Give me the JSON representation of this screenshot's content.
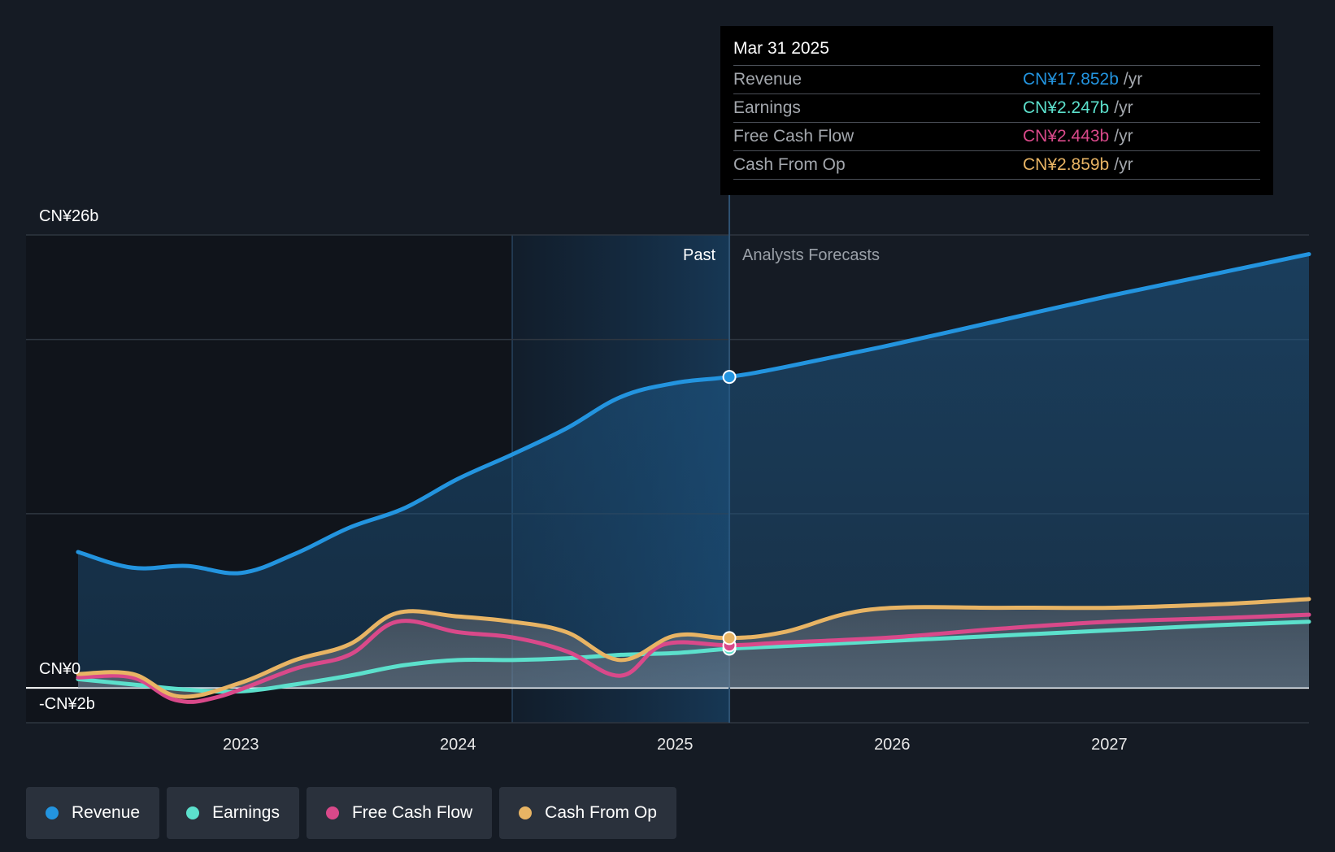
{
  "chart_data": {
    "type": "line",
    "y_unit_labels": {
      "top": "CN¥26b",
      "zero": "CN¥0",
      "bottom": "-CN¥2b"
    },
    "ylim": [
      -2,
      26
    ],
    "xlim": [
      2022.25,
      2027.92
    ],
    "x_ticks": [
      {
        "value": 2023,
        "label": "2023"
      },
      {
        "value": 2024,
        "label": "2024"
      },
      {
        "value": 2025,
        "label": "2025"
      },
      {
        "value": 2026,
        "label": "2026"
      },
      {
        "value": 2027,
        "label": "2027"
      }
    ],
    "gridlines": [
      26,
      20,
      10,
      0,
      -2
    ],
    "past_label": "Past",
    "forecast_label": "Analysts Forecasts",
    "divider_x": 2025.25,
    "highlight_start_x": 2024.25,
    "series": [
      {
        "name": "Revenue",
        "color": "#2394df",
        "points": [
          [
            2022.25,
            7.8
          ],
          [
            2022.5,
            6.9
          ],
          [
            2022.75,
            7.0
          ],
          [
            2023.0,
            6.6
          ],
          [
            2023.25,
            7.7
          ],
          [
            2023.5,
            9.2
          ],
          [
            2023.75,
            10.3
          ],
          [
            2024.0,
            12.0
          ],
          [
            2024.25,
            13.4
          ],
          [
            2024.5,
            14.9
          ],
          [
            2024.75,
            16.7
          ],
          [
            2025.0,
            17.5
          ],
          [
            2025.25,
            17.852
          ],
          [
            2025.5,
            18.4
          ],
          [
            2026.0,
            19.7
          ],
          [
            2026.5,
            21.1
          ],
          [
            2027.0,
            22.5
          ],
          [
            2027.5,
            23.8
          ],
          [
            2027.92,
            24.9
          ]
        ]
      },
      {
        "name": "Earnings",
        "color": "#5ce0cc",
        "points": [
          [
            2022.25,
            0.5
          ],
          [
            2022.5,
            0.2
          ],
          [
            2022.75,
            -0.1
          ],
          [
            2023.0,
            -0.2
          ],
          [
            2023.25,
            0.2
          ],
          [
            2023.5,
            0.7
          ],
          [
            2023.75,
            1.3
          ],
          [
            2024.0,
            1.6
          ],
          [
            2024.25,
            1.6
          ],
          [
            2024.5,
            1.7
          ],
          [
            2024.75,
            1.9
          ],
          [
            2025.0,
            2.0
          ],
          [
            2025.25,
            2.247
          ],
          [
            2025.5,
            2.4
          ],
          [
            2026.0,
            2.7
          ],
          [
            2026.5,
            3.0
          ],
          [
            2027.0,
            3.3
          ],
          [
            2027.5,
            3.6
          ],
          [
            2027.92,
            3.8
          ]
        ]
      },
      {
        "name": "Free Cash Flow",
        "color": "#d9498a",
        "points": [
          [
            2022.25,
            0.6
          ],
          [
            2022.5,
            0.6
          ],
          [
            2022.7,
            -0.7
          ],
          [
            2022.9,
            -0.5
          ],
          [
            2023.25,
            1.1
          ],
          [
            2023.5,
            1.9
          ],
          [
            2023.72,
            3.8
          ],
          [
            2024.0,
            3.2
          ],
          [
            2024.25,
            2.9
          ],
          [
            2024.5,
            2.1
          ],
          [
            2024.75,
            0.7
          ],
          [
            2024.95,
            2.5
          ],
          [
            2025.25,
            2.443
          ],
          [
            2025.5,
            2.6
          ],
          [
            2026.0,
            2.9
          ],
          [
            2026.5,
            3.4
          ],
          [
            2027.0,
            3.8
          ],
          [
            2027.5,
            4.0
          ],
          [
            2027.92,
            4.2
          ]
        ]
      },
      {
        "name": "Cash From Op",
        "color": "#e8b464",
        "points": [
          [
            2022.25,
            0.8
          ],
          [
            2022.5,
            0.8
          ],
          [
            2022.72,
            -0.5
          ],
          [
            2023.0,
            0.3
          ],
          [
            2023.25,
            1.6
          ],
          [
            2023.5,
            2.5
          ],
          [
            2023.72,
            4.3
          ],
          [
            2024.0,
            4.1
          ],
          [
            2024.25,
            3.8
          ],
          [
            2024.5,
            3.2
          ],
          [
            2024.75,
            1.6
          ],
          [
            2025.0,
            3.0
          ],
          [
            2025.25,
            2.859
          ],
          [
            2025.5,
            3.2
          ],
          [
            2025.9,
            4.5
          ],
          [
            2026.5,
            4.6
          ],
          [
            2027.0,
            4.6
          ],
          [
            2027.5,
            4.8
          ],
          [
            2027.92,
            5.1
          ]
        ]
      }
    ],
    "markers_at_x": 2025.25
  },
  "tooltip": {
    "date": "Mar 31 2025",
    "rows": [
      {
        "name": "Revenue",
        "value": "CN¥17.852b",
        "unit": "/yr",
        "color": "#2394df"
      },
      {
        "name": "Earnings",
        "value": "CN¥2.247b",
        "unit": "/yr",
        "color": "#5ce0cc"
      },
      {
        "name": "Free Cash Flow",
        "value": "CN¥2.443b",
        "unit": "/yr",
        "color": "#d9498a"
      },
      {
        "name": "Cash From Op",
        "value": "CN¥2.859b",
        "unit": "/yr",
        "color": "#e8b464"
      }
    ]
  },
  "legend": [
    {
      "label": "Revenue",
      "color": "#2394df"
    },
    {
      "label": "Earnings",
      "color": "#5ce0cc"
    },
    {
      "label": "Free Cash Flow",
      "color": "#d9498a"
    },
    {
      "label": "Cash From Op",
      "color": "#e8b464"
    }
  ]
}
